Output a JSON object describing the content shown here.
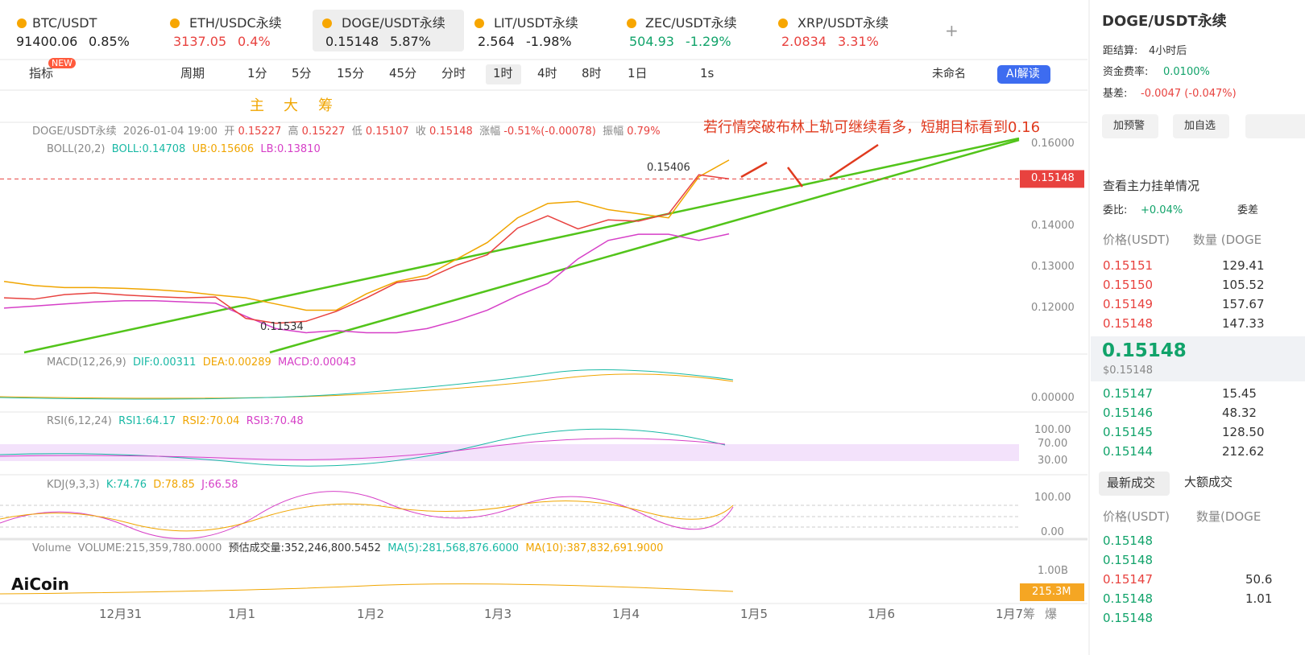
{
  "tabs": [
    {
      "pair": "BTC/USDT",
      "price": "91400.06",
      "change": "0.85%",
      "color": "#222222"
    },
    {
      "pair": "ETH/USDC永续",
      "price": "3137.05",
      "change": "0.4%",
      "color": "#e8423f"
    },
    {
      "pair": "DOGE/USDT永续",
      "price": "0.15148",
      "change": "5.87%",
      "color": "#222222"
    },
    {
      "pair": "LIT/USDT永续",
      "price": "2.564",
      "change": "-1.98%",
      "color": "#222222"
    },
    {
      "pair": "ZEC/USDT永续",
      "price": "504.93",
      "change": "-1.29%",
      "color": "#11a36a"
    },
    {
      "pair": "XRP/USDT永续",
      "price": "2.0834",
      "change": "3.31%",
      "color": "#e8423f"
    }
  ],
  "add_tab": "+",
  "toolbar": {
    "indicator": "指标",
    "new": "NEW",
    "period": "周期",
    "intervals": [
      "1分",
      "5分",
      "15分",
      "45分",
      "分时",
      "1时",
      "4时",
      "8时",
      "1日"
    ],
    "second": "1s",
    "layout_name": "未命名",
    "ai": "AI解读"
  },
  "draw_tools": [
    "主",
    "大",
    "筹"
  ],
  "chart": {
    "info": {
      "symbol": "DOGE/USDT永续",
      "time": "2026-01-04 19:00",
      "open_label": "开",
      "open": "0.15227",
      "high_label": "高",
      "high": "0.15227",
      "low_label": "低",
      "low": "0.15107",
      "close_label": "收",
      "close": "0.15148",
      "chg_label": "涨幅",
      "chg": "-0.51%(-0.00078)",
      "amp_label": "振幅",
      "amp": "0.79%"
    },
    "boll": {
      "name": "BOLL(20,2)",
      "mid": "BOLL:0.14708",
      "ub": "UB:0.15606",
      "lb": "LB:0.13810"
    },
    "annotation": "若行情突破布林上轨可继续看多，短期目标看到0.16",
    "high_mark": "0.15406",
    "low_mark": "0.11534",
    "price": {
      "ylim": [
        0.1088,
        0.1647
      ],
      "close": [
        0.1225,
        0.1222,
        0.1233,
        0.1237,
        0.1232,
        0.1228,
        0.1225,
        0.1227,
        0.1175,
        0.1163,
        0.1168,
        0.1192,
        0.1225,
        0.1262,
        0.1272,
        0.1305,
        0.133,
        0.1395,
        0.1425,
        0.1393,
        0.1415,
        0.1412,
        0.143,
        0.1525,
        0.1515
      ],
      "ub": [
        0.1265,
        0.1255,
        0.125,
        0.125,
        0.1248,
        0.1245,
        0.124,
        0.1232,
        0.1225,
        0.121,
        0.1195,
        0.1195,
        0.1235,
        0.1265,
        0.128,
        0.132,
        0.136,
        0.142,
        0.1455,
        0.146,
        0.144,
        0.143,
        0.142,
        0.152,
        0.1561
      ],
      "lb": [
        0.12,
        0.1205,
        0.121,
        0.1215,
        0.1218,
        0.1218,
        0.1215,
        0.1212,
        0.118,
        0.115,
        0.114,
        0.1145,
        0.114,
        0.114,
        0.115,
        0.117,
        0.1195,
        0.123,
        0.126,
        0.132,
        0.1365,
        0.138,
        0.138,
        0.1365,
        0.1381
      ],
      "ticks": [
        {
          "value": 0.16,
          "label": "0.16000"
        },
        {
          "value": 0.14,
          "label": "0.14000"
        },
        {
          "value": 0.13,
          "label": "0.13000"
        },
        {
          "value": 0.12,
          "label": "0.12000"
        }
      ],
      "last_price": 0.15148
    },
    "macd": {
      "name": "MACD(12,26,9)",
      "dif": "DIF:0.00311",
      "dea": "DEA:0.00289",
      "macd": "MACD:0.00043",
      "tick": "0.00000"
    },
    "rsi": {
      "name": "RSI(6,12,24)",
      "r1": "RSI1:64.17",
      "r2": "RSI2:70.04",
      "r3": "RSI3:70.48",
      "ticks": [
        "100.00",
        "70.00",
        "30.00"
      ]
    },
    "kdj": {
      "name": "KDJ(9,3,3)",
      "k": "K:74.76",
      "d": "D:78.85",
      "j": "J:66.58",
      "ticks": [
        "100.00",
        "0.00"
      ]
    },
    "volume": {
      "name": "Volume",
      "vol": "VOLUME:215,359,780.0000",
      "est": "预估成交量:352,246,800.5452",
      "ma5": "MA(5):281,568,876.6000",
      "ma10": "MA(10):387,832,691.9000",
      "tick": "1.00B",
      "last": "215.3M"
    },
    "logo": "AiCoin",
    "xlabels": [
      "12月31",
      "1月1",
      "1月2",
      "1月3",
      "1月4",
      "1月5",
      "1月6",
      "1月7"
    ],
    "corner": [
      "筹",
      "爆"
    ]
  },
  "side": {
    "title": "DOGE/USDT永续",
    "settle_label": "距结算:",
    "settle": "4小时后",
    "funding_label": "资金费率:",
    "funding": "0.0100%",
    "basis_label": "基差:",
    "basis": "-0.0047 (-0.047%)",
    "buttons": [
      "加预警",
      "加自选"
    ],
    "depth_link": "查看主力挂单情况",
    "ratio_label": "委比:",
    "ratio": "+0.04%",
    "diff_label": "委差",
    "price_head": "价格(USDT)",
    "qty_head": "数量 (DOGE",
    "asks": [
      [
        "0.15151",
        "129.41"
      ],
      [
        "0.15150",
        "105.52"
      ],
      [
        "0.15149",
        "157.67"
      ],
      [
        "0.15148",
        "147.33"
      ]
    ],
    "mid": "0.15148",
    "mid_usd": "$0.15148",
    "bids": [
      [
        "0.15147",
        "15.45"
      ],
      [
        "0.15146",
        "48.32"
      ],
      [
        "0.15145",
        "128.50"
      ],
      [
        "0.15144",
        "212.62"
      ]
    ],
    "trade_tabs": [
      "最新成交",
      "大额成交"
    ],
    "trade_price_head": "价格(USDT)",
    "trade_qty_head": "数量(DOGE",
    "trades": [
      [
        "0.15148",
        ""
      ],
      [
        "0.15148",
        ""
      ],
      [
        "0.15147",
        "50.6"
      ],
      [
        "0.15148",
        "1.01"
      ],
      [
        "0.15148",
        ""
      ]
    ]
  }
}
